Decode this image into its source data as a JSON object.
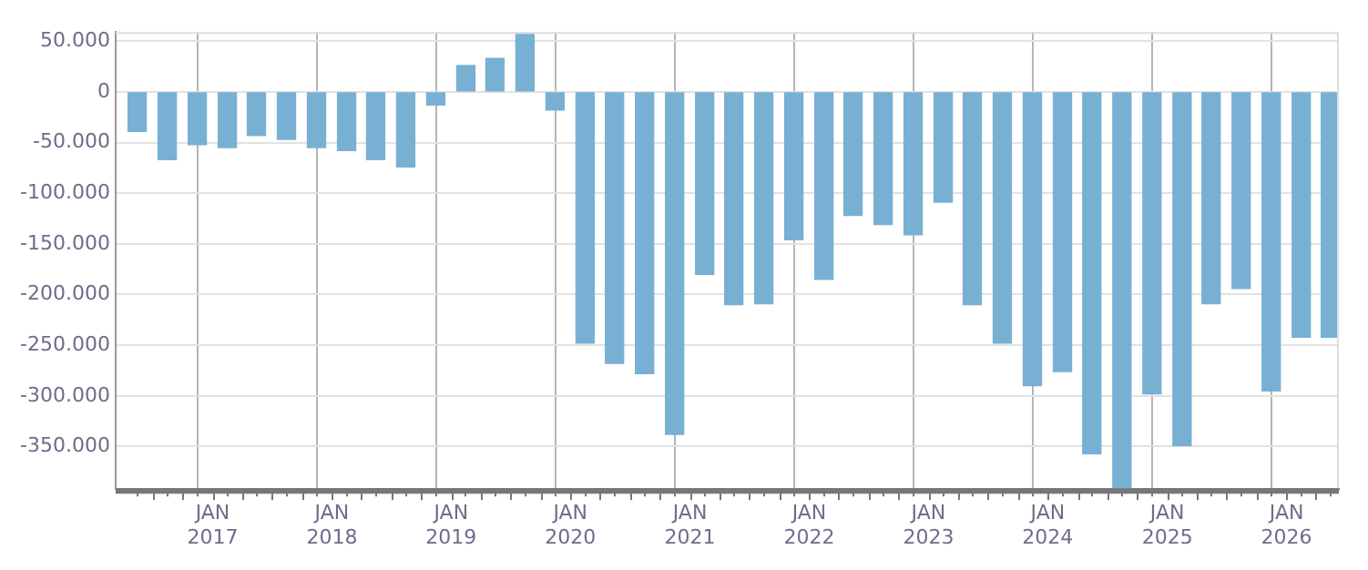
{
  "chart_data": {
    "type": "bar",
    "x": [
      "2016-05-15",
      "2016-08-15",
      "2016-11-15",
      "2017-02-15",
      "2017-05-15",
      "2017-08-15",
      "2017-11-15",
      "2018-02-15",
      "2018-05-15",
      "2018-08-15",
      "2018-11-15",
      "2019-02-15",
      "2019-05-15",
      "2019-08-15",
      "2019-11-15",
      "2020-02-15",
      "2020-05-15",
      "2020-08-15",
      "2020-11-15",
      "2021-02-15",
      "2021-05-15",
      "2021-08-15",
      "2021-11-15",
      "2022-02-15",
      "2022-05-15",
      "2022-08-15",
      "2022-11-15",
      "2023-02-15",
      "2023-05-15",
      "2023-08-15",
      "2023-11-15",
      "2024-02-15",
      "2024-05-15",
      "2024-08-15",
      "2024-11-15",
      "2025-02-15",
      "2025-05-15",
      "2025-08-15",
      "2025-11-15",
      "2026-02-15",
      "2026-05-15"
    ],
    "values": [
      -39000,
      -67000,
      -52000,
      -55000,
      -43000,
      -47000,
      -55000,
      -58000,
      -67000,
      -74000,
      -13000,
      26000,
      33000,
      58000,
      -18000,
      -248000,
      -268000,
      -278000,
      -338000,
      -180000,
      -210000,
      -209000,
      -146000,
      -185000,
      -122000,
      -131000,
      -141000,
      -109000,
      -210000,
      -248000,
      -290000,
      -276000,
      -357000,
      -392000,
      -298000,
      -349000,
      -209000,
      -194000,
      -295000,
      -242000,
      -242000
    ],
    "color": "#78b0d3",
    "xlim": [
      "2016-03-10",
      "2026-06-10"
    ],
    "xticks": [
      {
        "value": "2016-07-01",
        "label": null
      },
      {
        "value": "2016-10-01",
        "label": null
      },
      {
        "value": "2017-01-01",
        "label": "JAN 2017"
      },
      {
        "value": "2017-04-01",
        "label": null
      },
      {
        "value": "2017-07-01",
        "label": null
      },
      {
        "value": "2017-10-01",
        "label": null
      },
      {
        "value": "2018-01-01",
        "label": "JAN 2018"
      },
      {
        "value": "2018-04-01",
        "label": null
      },
      {
        "value": "2018-07-01",
        "label": null
      },
      {
        "value": "2018-10-01",
        "label": null
      },
      {
        "value": "2019-01-01",
        "label": "JAN 2019"
      },
      {
        "value": "2019-04-01",
        "label": null
      },
      {
        "value": "2019-07-01",
        "label": null
      },
      {
        "value": "2019-10-01",
        "label": null
      },
      {
        "value": "2020-01-01",
        "label": "JAN 2020"
      },
      {
        "value": "2020-04-01",
        "label": null
      },
      {
        "value": "2020-07-01",
        "label": null
      },
      {
        "value": "2020-10-01",
        "label": null
      },
      {
        "value": "2021-01-01",
        "label": "JAN 2021"
      },
      {
        "value": "2021-04-01",
        "label": null
      },
      {
        "value": "2021-07-01",
        "label": null
      },
      {
        "value": "2021-10-01",
        "label": null
      },
      {
        "value": "2022-01-01",
        "label": "JAN 2022"
      },
      {
        "value": "2022-04-01",
        "label": null
      },
      {
        "value": "2022-07-01",
        "label": null
      },
      {
        "value": "2022-10-01",
        "label": null
      },
      {
        "value": "2023-01-01",
        "label": "JAN 2023"
      },
      {
        "value": "2023-04-01",
        "label": null
      },
      {
        "value": "2023-07-01",
        "label": null
      },
      {
        "value": "2023-10-01",
        "label": null
      },
      {
        "value": "2024-01-01",
        "label": "JAN 2024"
      },
      {
        "value": "2024-04-01",
        "label": null
      },
      {
        "value": "2024-07-01",
        "label": null
      },
      {
        "value": "2024-10-01",
        "label": null
      },
      {
        "value": "2025-01-01",
        "label": "JAN 2025"
      },
      {
        "value": "2025-04-01",
        "label": null
      },
      {
        "value": "2025-07-01",
        "label": null
      },
      {
        "value": "2025-10-01",
        "label": null
      },
      {
        "value": "2026-01-01",
        "label": "JAN 2026"
      },
      {
        "value": "2026-04-01",
        "label": null
      }
    ],
    "ylim": [
      -392000,
      59000
    ],
    "yticks": [
      {
        "value": 50000,
        "label": "50.000"
      },
      {
        "value": 0,
        "label": "0"
      },
      {
        "value": -50000,
        "label": "-50.000"
      },
      {
        "value": -100000,
        "label": "-100.000"
      },
      {
        "value": -150000,
        "label": "-150.000"
      },
      {
        "value": -200000,
        "label": "-200.000"
      },
      {
        "value": -250000,
        "label": "-250.000"
      },
      {
        "value": -300000,
        "label": "-300.000"
      },
      {
        "value": -350000,
        "label": "-350.000"
      }
    ],
    "grid": true,
    "legend": false
  }
}
